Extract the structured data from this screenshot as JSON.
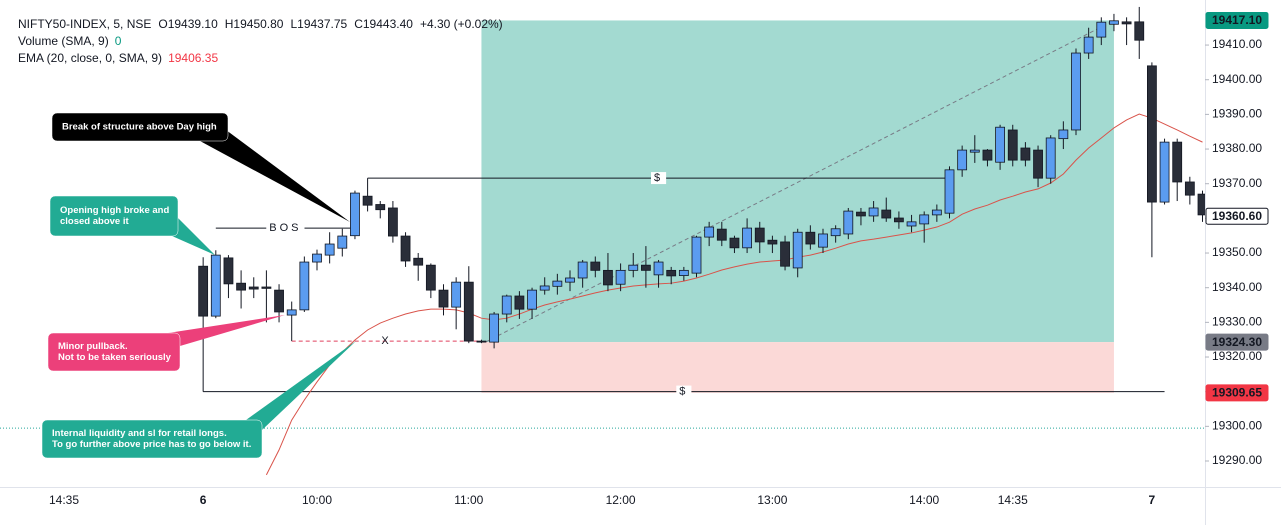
{
  "chart_data": {
    "type": "candlestick",
    "header": {
      "symbol": "NIFTY50-INDEX, 5, NSE",
      "ohlc": [
        "O19439.10",
        "H19450.80",
        "L19437.75",
        "C19443.40"
      ],
      "change": "+4.30 (+0.02%)"
    },
    "indicators": [
      {
        "label": "Volume (SMA, 9)",
        "value": 0,
        "color": "#089981"
      },
      {
        "label": "EMA (20, close, 0, SMA, 9)",
        "value": 19406.35,
        "color": "#f23645"
      }
    ],
    "categories": [
      "14:35",
      null,
      null,
      null,
      null,
      null,
      null,
      null,
      null,
      null,
      null,
      "6",
      null,
      null,
      null,
      null,
      null,
      null,
      null,
      null,
      "10:00",
      null,
      null,
      null,
      null,
      null,
      null,
      null,
      null,
      null,
      null,
      null,
      "11:00",
      null,
      null,
      null,
      null,
      null,
      null,
      null,
      null,
      null,
      null,
      null,
      "12:00",
      null,
      null,
      null,
      null,
      null,
      null,
      null,
      null,
      null,
      null,
      null,
      "13:00",
      null,
      null,
      null,
      null,
      null,
      null,
      null,
      null,
      null,
      null,
      null,
      "14:00",
      null,
      null,
      null,
      null,
      null,
      null,
      "14:35",
      null,
      null,
      null,
      null,
      null,
      null,
      null,
      null,
      null,
      null,
      "7",
      null,
      null,
      null,
      null
    ],
    "ohlc": [
      null,
      null,
      null,
      null,
      null,
      null,
      null,
      null,
      null,
      null,
      null,
      [
        19346.2,
        19348.8,
        19310,
        19331.8
      ],
      [
        19331.8,
        19350.8,
        19331.2,
        19349.4
      ],
      [
        19348.6,
        19349.4,
        19337,
        19341.1
      ],
      [
        19341.3,
        19345,
        19334,
        19339.3
      ],
      [
        19340.2,
        19343,
        19337,
        19339.6
      ],
      [
        19340.2,
        19345,
        19330,
        19339.8
      ],
      [
        19339.3,
        19341,
        19330,
        19333
      ],
      [
        19332.1,
        19336,
        19324.6,
        19333.6
      ],
      [
        19333.6,
        19349,
        19333,
        19347.4
      ],
      [
        19347.4,
        19351,
        19345,
        19349.7
      ],
      [
        19349.4,
        19356,
        19347,
        19352.6
      ],
      [
        19351.4,
        19357,
        19349,
        19354.9
      ],
      [
        19355,
        19368,
        19354,
        19367.3
      ],
      [
        19366.4,
        19371.6,
        19362,
        19363.8
      ],
      [
        19364,
        19365,
        19360,
        19362.5
      ],
      [
        19363,
        19365,
        19353,
        19354.9
      ],
      [
        19354.9,
        19356,
        19346,
        19347.7
      ],
      [
        19348.5,
        19350,
        19342,
        19346.5
      ],
      [
        19346.5,
        19347,
        19337,
        19339.3
      ],
      [
        19339.3,
        19341,
        19332,
        19334.4
      ],
      [
        19334.4,
        19343,
        19328,
        19341.6
      ],
      [
        19341.6,
        19346.2,
        19324,
        19324.6
      ],
      [
        19324.6,
        19325,
        19324,
        19324.3
      ],
      [
        19324.3,
        19333,
        19322.5,
        19332.4
      ],
      [
        19332.4,
        19338,
        19330,
        19337.6
      ],
      [
        19337.6,
        19339,
        19331,
        19333.8
      ],
      [
        19333.8,
        19340,
        19331,
        19339.3
      ],
      [
        19339.3,
        19343,
        19338,
        19340.5
      ],
      [
        19340.4,
        19344,
        19338,
        19341.9
      ],
      [
        19341.6,
        19345,
        19339,
        19342.8
      ],
      [
        19342.8,
        19348,
        19340,
        19347.4
      ],
      [
        19347.4,
        19349,
        19343,
        19345
      ],
      [
        19345,
        19350,
        19339,
        19340.8
      ],
      [
        19341,
        19347,
        19339,
        19345
      ],
      [
        19345,
        19350,
        19343,
        19346.5
      ],
      [
        19346.5,
        19352,
        19340,
        19345
      ],
      [
        19343.7,
        19348,
        19340,
        19347.4
      ],
      [
        19345,
        19346,
        19341,
        19343.4
      ],
      [
        19343.5,
        19346,
        19342,
        19345
      ],
      [
        19344.2,
        19355,
        19343,
        19354.6
      ],
      [
        19354.6,
        19359,
        19352,
        19357.5
      ],
      [
        19356.9,
        19359,
        19352,
        19353.7
      ],
      [
        19354.3,
        19355,
        19350,
        19351.5
      ],
      [
        19351.5,
        19360,
        19350,
        19357.2
      ],
      [
        19357.2,
        19359,
        19350,
        19353.2
      ],
      [
        19353.7,
        19355,
        19350,
        19352.6
      ],
      [
        19353.2,
        19355,
        19345,
        19346.2
      ],
      [
        19345.7,
        19357,
        19343,
        19356
      ],
      [
        19356,
        19358,
        19351,
        19352.6
      ],
      [
        19351.7,
        19357,
        19350,
        19355.5
      ],
      [
        19355,
        19358,
        19353,
        19357
      ],
      [
        19355.5,
        19363,
        19354,
        19362.1
      ],
      [
        19361.8,
        19363,
        19358,
        19360.7
      ],
      [
        19360.7,
        19365,
        19359,
        19363
      ],
      [
        19362.4,
        19366,
        19359,
        19360.1
      ],
      [
        19360.1,
        19362,
        19357,
        19359
      ],
      [
        19357.8,
        19361,
        19356,
        19359
      ],
      [
        19358.4,
        19362,
        19353,
        19361
      ],
      [
        19361,
        19364,
        19359,
        19362.4
      ],
      [
        19361.5,
        19375,
        19360,
        19374
      ],
      [
        19374,
        19381,
        19372,
        19379.7
      ],
      [
        19379.1,
        19384,
        19376,
        19379.7
      ],
      [
        19379.7,
        19380,
        19375,
        19376.8
      ],
      [
        19376.2,
        19387,
        19374,
        19386.3
      ],
      [
        19385.5,
        19387,
        19375,
        19376.8
      ],
      [
        19380.3,
        19382,
        19375,
        19376.8
      ],
      [
        19379.7,
        19381,
        19369,
        19371.6
      ],
      [
        19371.6,
        19384,
        19370,
        19383.2
      ],
      [
        19383,
        19388,
        19380,
        19385.5
      ],
      [
        19385.5,
        19409,
        19384,
        19407.7
      ],
      [
        19407.7,
        19415,
        19406,
        19412.3
      ],
      [
        19412.3,
        19418,
        19410,
        19416.6
      ],
      [
        19416,
        19419,
        19414,
        19417
      ],
      [
        19416.7,
        19418,
        19410,
        19416.1
      ],
      [
        19416.7,
        19421,
        19406,
        19411.4
      ],
      [
        19404,
        19405,
        19348.8,
        19364.7
      ],
      [
        19364.7,
        19383,
        19364,
        19382
      ],
      [
        19382,
        19383,
        19365,
        19370.5
      ],
      [
        19370.5,
        19372,
        19364,
        19366.7
      ],
      [
        19367,
        19368,
        19359,
        19361
      ]
    ],
    "up_color": "#5b9cf0",
    "down_color": "#2a2e39",
    "border_color": "#131722",
    "ema": {
      "color": "#d9534a",
      "values": [
        null,
        null,
        null,
        null,
        null,
        null,
        null,
        null,
        null,
        null,
        null,
        null,
        null,
        null,
        null,
        null,
        19286,
        19293.2,
        19301.8,
        19307.6,
        19312.8,
        19317.7,
        19321.4,
        19324.9,
        19327.8,
        19329.8,
        19331.2,
        19332.4,
        19333.3,
        19333.8,
        19333.8,
        19333.6,
        19332.7,
        19331.2,
        19330.7,
        19331.2,
        19332.4,
        19333.8,
        19335,
        19335.9,
        19336.7,
        19337.6,
        19338.5,
        19339.3,
        19339.9,
        19340.5,
        19340.8,
        19341.1,
        19341.3,
        19341.9,
        19342.8,
        19343.9,
        19345.1,
        19346,
        19346.8,
        19347.4,
        19347.7,
        19348,
        19348.8,
        19349.4,
        19350.3,
        19351.4,
        19352.6,
        19353.5,
        19354,
        19354.6,
        19355.2,
        19355.8,
        19356.6,
        19357.5,
        19358.9,
        19361.2,
        19362.7,
        19363.8,
        19365.3,
        19366.4,
        19367.6,
        19368.5,
        19370.2,
        19372.8,
        19376.8,
        19380.3,
        19383.2,
        19386.1,
        19388.4,
        19390.1,
        19388.9,
        19387.2,
        19385.5,
        19383.7,
        19382
      ]
    },
    "ylim": [
      19282.5,
      19423
    ],
    "yticks": [
      {
        "value": 19290,
        "label": "19290.00"
      },
      {
        "value": 19300,
        "label": "19300.00"
      },
      {
        "value": 19310,
        "label": "19310.00"
      },
      {
        "value": 19320,
        "label": "19320.00"
      },
      {
        "value": 19330,
        "label": "19330.00"
      },
      {
        "value": 19340,
        "label": "19340.00"
      },
      {
        "value": 19350,
        "label": "19350.00"
      },
      {
        "value": 19360,
        "label": "19360.00"
      },
      {
        "value": 19370,
        "label": "19370.00"
      },
      {
        "value": 19380,
        "label": "19380.00"
      },
      {
        "value": 19390,
        "label": "19390.00"
      },
      {
        "value": 19400,
        "label": "19400.00"
      },
      {
        "value": 19410,
        "label": "19410.00"
      }
    ],
    "grid": false,
    "hline": {
      "value": 19299.5,
      "color": "#26a69a"
    },
    "position": {
      "entry": 19324.3,
      "target": 19417.1,
      "stop": 19309.65,
      "start": 33,
      "end": 83,
      "profit_color": "#a3dad1",
      "loss_color": "#fbd9d7"
    },
    "levels": [
      {
        "label": "BOS",
        "value": 19357.2,
        "from": 12,
        "to": 23,
        "color": "#131722",
        "dashed": false
      },
      {
        "label": "$",
        "value": 19371.6,
        "from": 24,
        "to": 70,
        "color": "#131722",
        "dashed": false
      },
      {
        "label": "$",
        "value": 19310,
        "from": 11,
        "to": 87,
        "color": "#131722",
        "dashed": false
      },
      {
        "label": "X",
        "value": 19324.6,
        "from": 18,
        "to": 33,
        "color": "#e0405e",
        "dashed": true
      }
    ],
    "annotations": [
      {
        "lines": [
          "Break of structure above Day high"
        ],
        "color": "#000000"
      },
      {
        "lines": [
          "Opening high broke and",
          "closed above it"
        ],
        "color": "#22ab94"
      },
      {
        "lines": [
          "Minor pullback.",
          "Not to be taken seriously"
        ],
        "color": "#ec407a"
      },
      {
        "lines": [
          "Internal liquidity and sl for retail longs.",
          "To go further above price has to go below it."
        ],
        "color": "#22ab94"
      }
    ],
    "price_tags": [
      {
        "value": 19417.1,
        "label": "19417.10",
        "color": "#089981",
        "text_color": "#ffffff"
      },
      {
        "value": 19360.6,
        "label": "19360.60",
        "color": "#ffffff",
        "text_color": "#131722"
      },
      {
        "value": 19324.3,
        "label": "19324.30",
        "color": "#787b86",
        "text_color": "#ffffff"
      },
      {
        "value": 19309.65,
        "label": "19309.65",
        "color": "#f23645",
        "text_color": "#ffffff"
      }
    ]
  }
}
